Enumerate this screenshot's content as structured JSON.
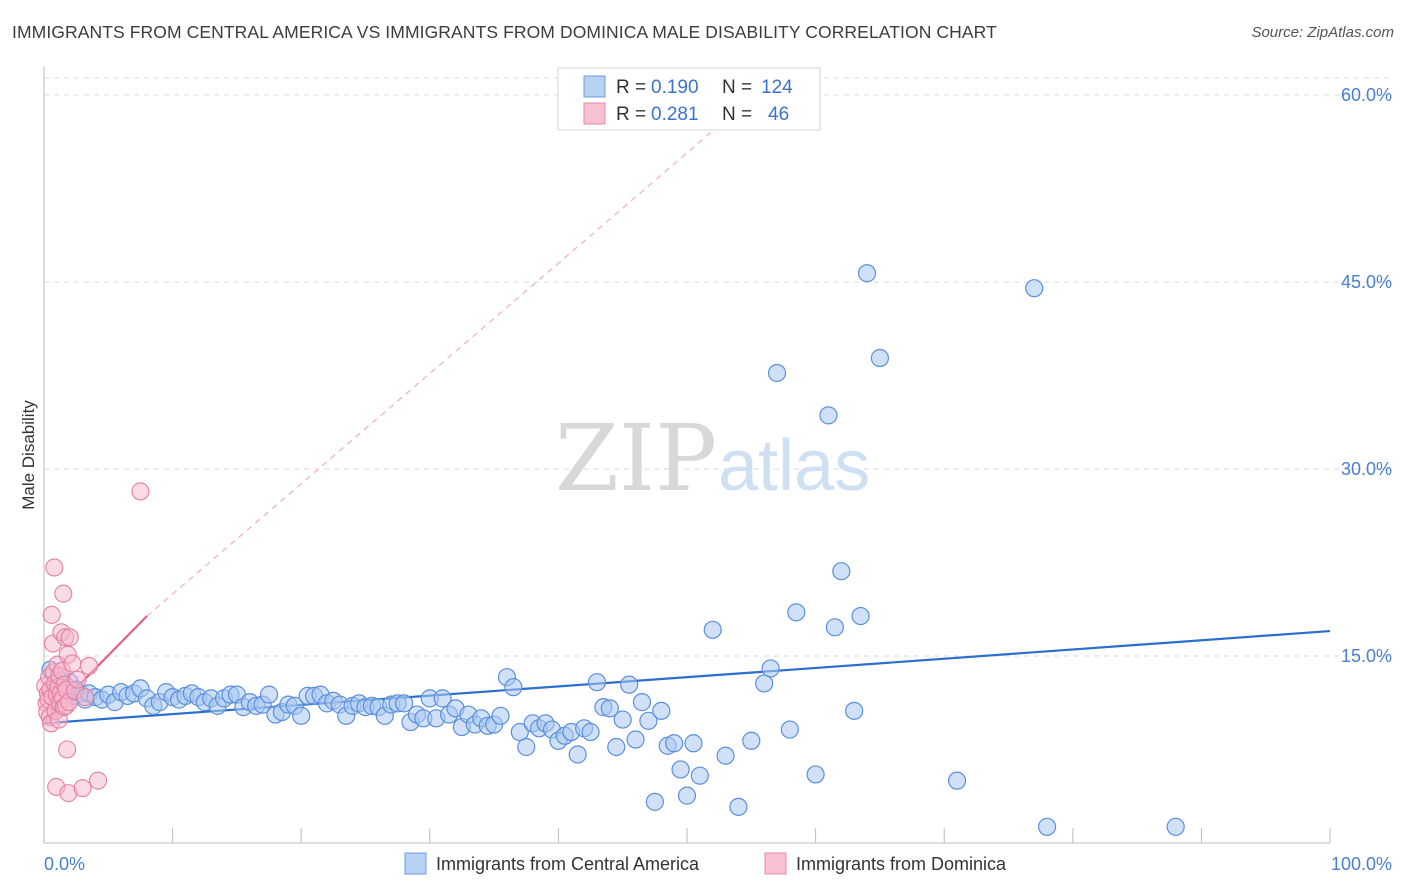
{
  "title": "IMMIGRANTS FROM CENTRAL AMERICA VS IMMIGRANTS FROM DOMINICA MALE DISABILITY CORRELATION CHART",
  "source": "Source: ZipAtlas.com",
  "watermark": {
    "zip": "ZIP",
    "atlas": "atlas"
  },
  "legend": {
    "rows": [
      {
        "r_label": "R =",
        "r_value": "0.190",
        "n_label": "N =",
        "n_value": "124"
      },
      {
        "r_label": "R =",
        "r_value": "0.281",
        "n_label": "N =",
        "n_value": "46"
      }
    ]
  },
  "colors": {
    "blue_fill": "#a9c8f0",
    "blue_stroke": "#5b8fdc",
    "blue_line": "#2a6fd0",
    "pink_fill": "#f6b8cb",
    "pink_stroke": "#e57fa0",
    "pink_line": "#e0608a",
    "grid": "#d9d9d9",
    "tick_text": "#4a7fd0"
  },
  "chart_data": {
    "type": "scatter",
    "title": "IMMIGRANTS FROM CENTRAL AMERICA VS IMMIGRANTS FROM DOMINICA MALE DISABILITY CORRELATION CHART",
    "xlabel": "",
    "ylabel": "Male Disability",
    "xlim": [
      0,
      100
    ],
    "ylim": [
      0,
      62
    ],
    "x_tick_labels": [
      "0.0%",
      "100.0%"
    ],
    "y_ticks": [
      15,
      30,
      45,
      60
    ],
    "y_tick_labels": [
      "15.0%",
      "30.0%",
      "45.0%",
      "60.0%"
    ],
    "grid": true,
    "legend_position": "top-center",
    "series": [
      {
        "name": "Immigrants from Central America",
        "color": "blue",
        "R": 0.19,
        "N": 124,
        "trend": {
          "x": [
            0,
            100
          ],
          "y": [
            9.6,
            17.0
          ]
        },
        "points": [
          [
            0.5,
            13.9
          ],
          [
            0.8,
            12.6
          ],
          [
            1.0,
            12.2
          ],
          [
            1.2,
            13.1
          ],
          [
            1.5,
            12.5
          ],
          [
            1.8,
            12.0
          ],
          [
            2.0,
            12.9
          ],
          [
            2.3,
            11.8
          ],
          [
            2.5,
            12.3
          ],
          [
            2.8,
            12.0
          ],
          [
            3.2,
            11.5
          ],
          [
            3.5,
            12.0
          ],
          [
            4.0,
            11.7
          ],
          [
            4.5,
            11.5
          ],
          [
            5.0,
            11.9
          ],
          [
            5.5,
            11.3
          ],
          [
            6.0,
            12.1
          ],
          [
            6.5,
            11.8
          ],
          [
            7.0,
            12.0
          ],
          [
            7.5,
            12.4
          ],
          [
            8.0,
            11.6
          ],
          [
            8.5,
            11.0
          ],
          [
            9.0,
            11.3
          ],
          [
            9.5,
            12.1
          ],
          [
            10.0,
            11.7
          ],
          [
            10.5,
            11.5
          ],
          [
            11.0,
            11.8
          ],
          [
            11.5,
            12.0
          ],
          [
            12.0,
            11.7
          ],
          [
            12.5,
            11.3
          ],
          [
            13.0,
            11.6
          ],
          [
            13.5,
            11.0
          ],
          [
            14.0,
            11.6
          ],
          [
            14.5,
            11.9
          ],
          [
            15.0,
            11.9
          ],
          [
            15.5,
            10.9
          ],
          [
            16.0,
            11.3
          ],
          [
            16.5,
            11.0
          ],
          [
            17.0,
            11.1
          ],
          [
            17.5,
            11.9
          ],
          [
            18.0,
            10.3
          ],
          [
            18.5,
            10.5
          ],
          [
            19.0,
            11.1
          ],
          [
            19.5,
            11.0
          ],
          [
            20.0,
            10.2
          ],
          [
            20.5,
            11.8
          ],
          [
            21.0,
            11.8
          ],
          [
            21.5,
            11.9
          ],
          [
            22.0,
            11.2
          ],
          [
            22.5,
            11.4
          ],
          [
            23.0,
            11.1
          ],
          [
            23.5,
            10.2
          ],
          [
            24.0,
            11.0
          ],
          [
            24.5,
            11.2
          ],
          [
            25.0,
            10.9
          ],
          [
            25.5,
            11.0
          ],
          [
            26.0,
            10.9
          ],
          [
            26.5,
            10.2
          ],
          [
            27.0,
            11.1
          ],
          [
            27.5,
            11.2
          ],
          [
            28.0,
            11.2
          ],
          [
            28.5,
            9.7
          ],
          [
            29.0,
            10.3
          ],
          [
            29.5,
            10.0
          ],
          [
            30.0,
            11.6
          ],
          [
            30.5,
            10.0
          ],
          [
            31.0,
            11.6
          ],
          [
            31.5,
            10.3
          ],
          [
            32.0,
            10.8
          ],
          [
            32.5,
            9.3
          ],
          [
            33.0,
            10.3
          ],
          [
            33.5,
            9.5
          ],
          [
            34.0,
            10.0
          ],
          [
            34.5,
            9.4
          ],
          [
            35.0,
            9.5
          ],
          [
            35.5,
            10.2
          ],
          [
            36.0,
            13.3
          ],
          [
            36.5,
            12.5
          ],
          [
            37.0,
            8.9
          ],
          [
            37.5,
            7.7
          ],
          [
            38.0,
            9.6
          ],
          [
            38.5,
            9.2
          ],
          [
            39.0,
            9.6
          ],
          [
            39.5,
            9.1
          ],
          [
            40.0,
            8.2
          ],
          [
            40.5,
            8.6
          ],
          [
            41.0,
            8.9
          ],
          [
            41.5,
            7.1
          ],
          [
            42.0,
            9.2
          ],
          [
            42.5,
            8.9
          ],
          [
            43.0,
            12.9
          ],
          [
            43.5,
            10.9
          ],
          [
            44.0,
            10.8
          ],
          [
            44.5,
            7.7
          ],
          [
            45.0,
            9.9
          ],
          [
            45.5,
            12.7
          ],
          [
            46.0,
            8.3
          ],
          [
            46.5,
            11.3
          ],
          [
            47.0,
            9.8
          ],
          [
            47.5,
            3.3
          ],
          [
            48.0,
            10.6
          ],
          [
            48.5,
            7.8
          ],
          [
            49.0,
            8.0
          ],
          [
            49.5,
            5.9
          ],
          [
            50.0,
            3.8
          ],
          [
            50.5,
            8.0
          ],
          [
            51.0,
            5.4
          ],
          [
            52.0,
            17.1
          ],
          [
            53.0,
            7.0
          ],
          [
            54.0,
            2.9
          ],
          [
            55.0,
            8.2
          ],
          [
            56.0,
            12.8
          ],
          [
            56.5,
            14.0
          ],
          [
            57.0,
            37.7
          ],
          [
            58.0,
            9.1
          ],
          [
            58.5,
            18.5
          ],
          [
            60.0,
            5.5
          ],
          [
            61.0,
            34.3
          ],
          [
            61.5,
            17.3
          ],
          [
            62.0,
            21.8
          ],
          [
            63.0,
            10.6
          ],
          [
            63.5,
            18.2
          ],
          [
            64.0,
            45.7
          ],
          [
            65.0,
            38.9
          ],
          [
            71.0,
            5.0
          ],
          [
            77.0,
            44.5
          ],
          [
            78.0,
            1.3
          ],
          [
            88.0,
            1.3
          ]
        ]
      },
      {
        "name": "Immigrants from Dominica",
        "color": "pink",
        "R": 0.281,
        "N": 46,
        "trend": {
          "x": [
            0,
            8
          ],
          "y": [
            9.8,
            18.2
          ]
        },
        "trend_extended": {
          "x": [
            8,
            53
          ],
          "y": [
            18.2,
            58.0
          ]
        },
        "points": [
          [
            0.1,
            12.6
          ],
          [
            0.2,
            11.2
          ],
          [
            0.25,
            10.5
          ],
          [
            0.3,
            12.0
          ],
          [
            0.35,
            11.5
          ],
          [
            0.4,
            13.3
          ],
          [
            0.45,
            10.1
          ],
          [
            0.5,
            12.3
          ],
          [
            0.55,
            9.6
          ],
          [
            0.6,
            18.3
          ],
          [
            0.65,
            11.7
          ],
          [
            0.7,
            16.0
          ],
          [
            0.75,
            13.7
          ],
          [
            0.8,
            22.1
          ],
          [
            0.85,
            12.8
          ],
          [
            0.9,
            10.6
          ],
          [
            0.95,
            4.5
          ],
          [
            1.0,
            11.9
          ],
          [
            1.05,
            14.3
          ],
          [
            1.1,
            12.5
          ],
          [
            1.15,
            9.9
          ],
          [
            1.2,
            13.4
          ],
          [
            1.25,
            11.2
          ],
          [
            1.3,
            12.0
          ],
          [
            1.35,
            16.9
          ],
          [
            1.4,
            13.8
          ],
          [
            1.45,
            11.6
          ],
          [
            1.5,
            20.0
          ],
          [
            1.55,
            10.9
          ],
          [
            1.6,
            12.7
          ],
          [
            1.65,
            16.5
          ],
          [
            1.7,
            11.0
          ],
          [
            1.75,
            12.3
          ],
          [
            1.8,
            7.5
          ],
          [
            1.85,
            15.1
          ],
          [
            1.9,
            4.0
          ],
          [
            1.95,
            11.3
          ],
          [
            2.0,
            16.5
          ],
          [
            2.2,
            14.4
          ],
          [
            2.4,
            12.2
          ],
          [
            2.6,
            13.1
          ],
          [
            3.0,
            4.4
          ],
          [
            3.2,
            11.7
          ],
          [
            3.5,
            14.2
          ],
          [
            4.2,
            5.0
          ],
          [
            7.5,
            28.2
          ]
        ]
      }
    ]
  },
  "bottom_legend": {
    "items": [
      {
        "label": "Immigrants from Central America"
      },
      {
        "label": "Immigrants from Dominica"
      }
    ]
  }
}
